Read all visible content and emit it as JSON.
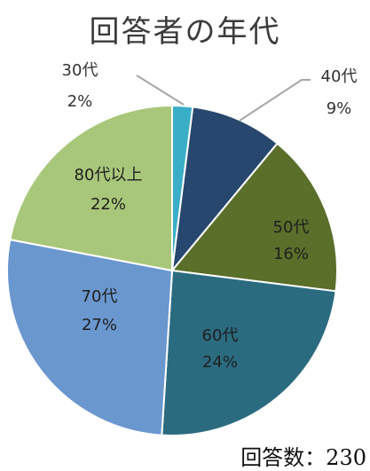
{
  "chart_data": {
    "type": "pie",
    "title": "回答者の年代",
    "note": "回答数：230",
    "slices": [
      {
        "label": "30代",
        "pct_label": "2%",
        "value": 2,
        "color": "#3aaec6",
        "text_color": "#333333"
      },
      {
        "label": "40代",
        "pct_label": "9%",
        "value": 9,
        "color": "#28476e",
        "text_color": "#333333"
      },
      {
        "label": "50代",
        "pct_label": "16%",
        "value": 16,
        "color": "#5a6f2a",
        "text_color": "#1f1f1f"
      },
      {
        "label": "60代",
        "pct_label": "24%",
        "value": 24,
        "color": "#2b6b80",
        "text_color": "#1f1f1f"
      },
      {
        "label": "70代",
        "pct_label": "27%",
        "value": 27,
        "color": "#6b97cf",
        "text_color": "#1f1f1f"
      },
      {
        "label": "80代以上",
        "pct_label": "22%",
        "value": 22,
        "color": "#a9c77a",
        "text_color": "#1f1f1f"
      }
    ],
    "legend": "none",
    "start_angle_deg": 0,
    "direction": "clockwise"
  }
}
